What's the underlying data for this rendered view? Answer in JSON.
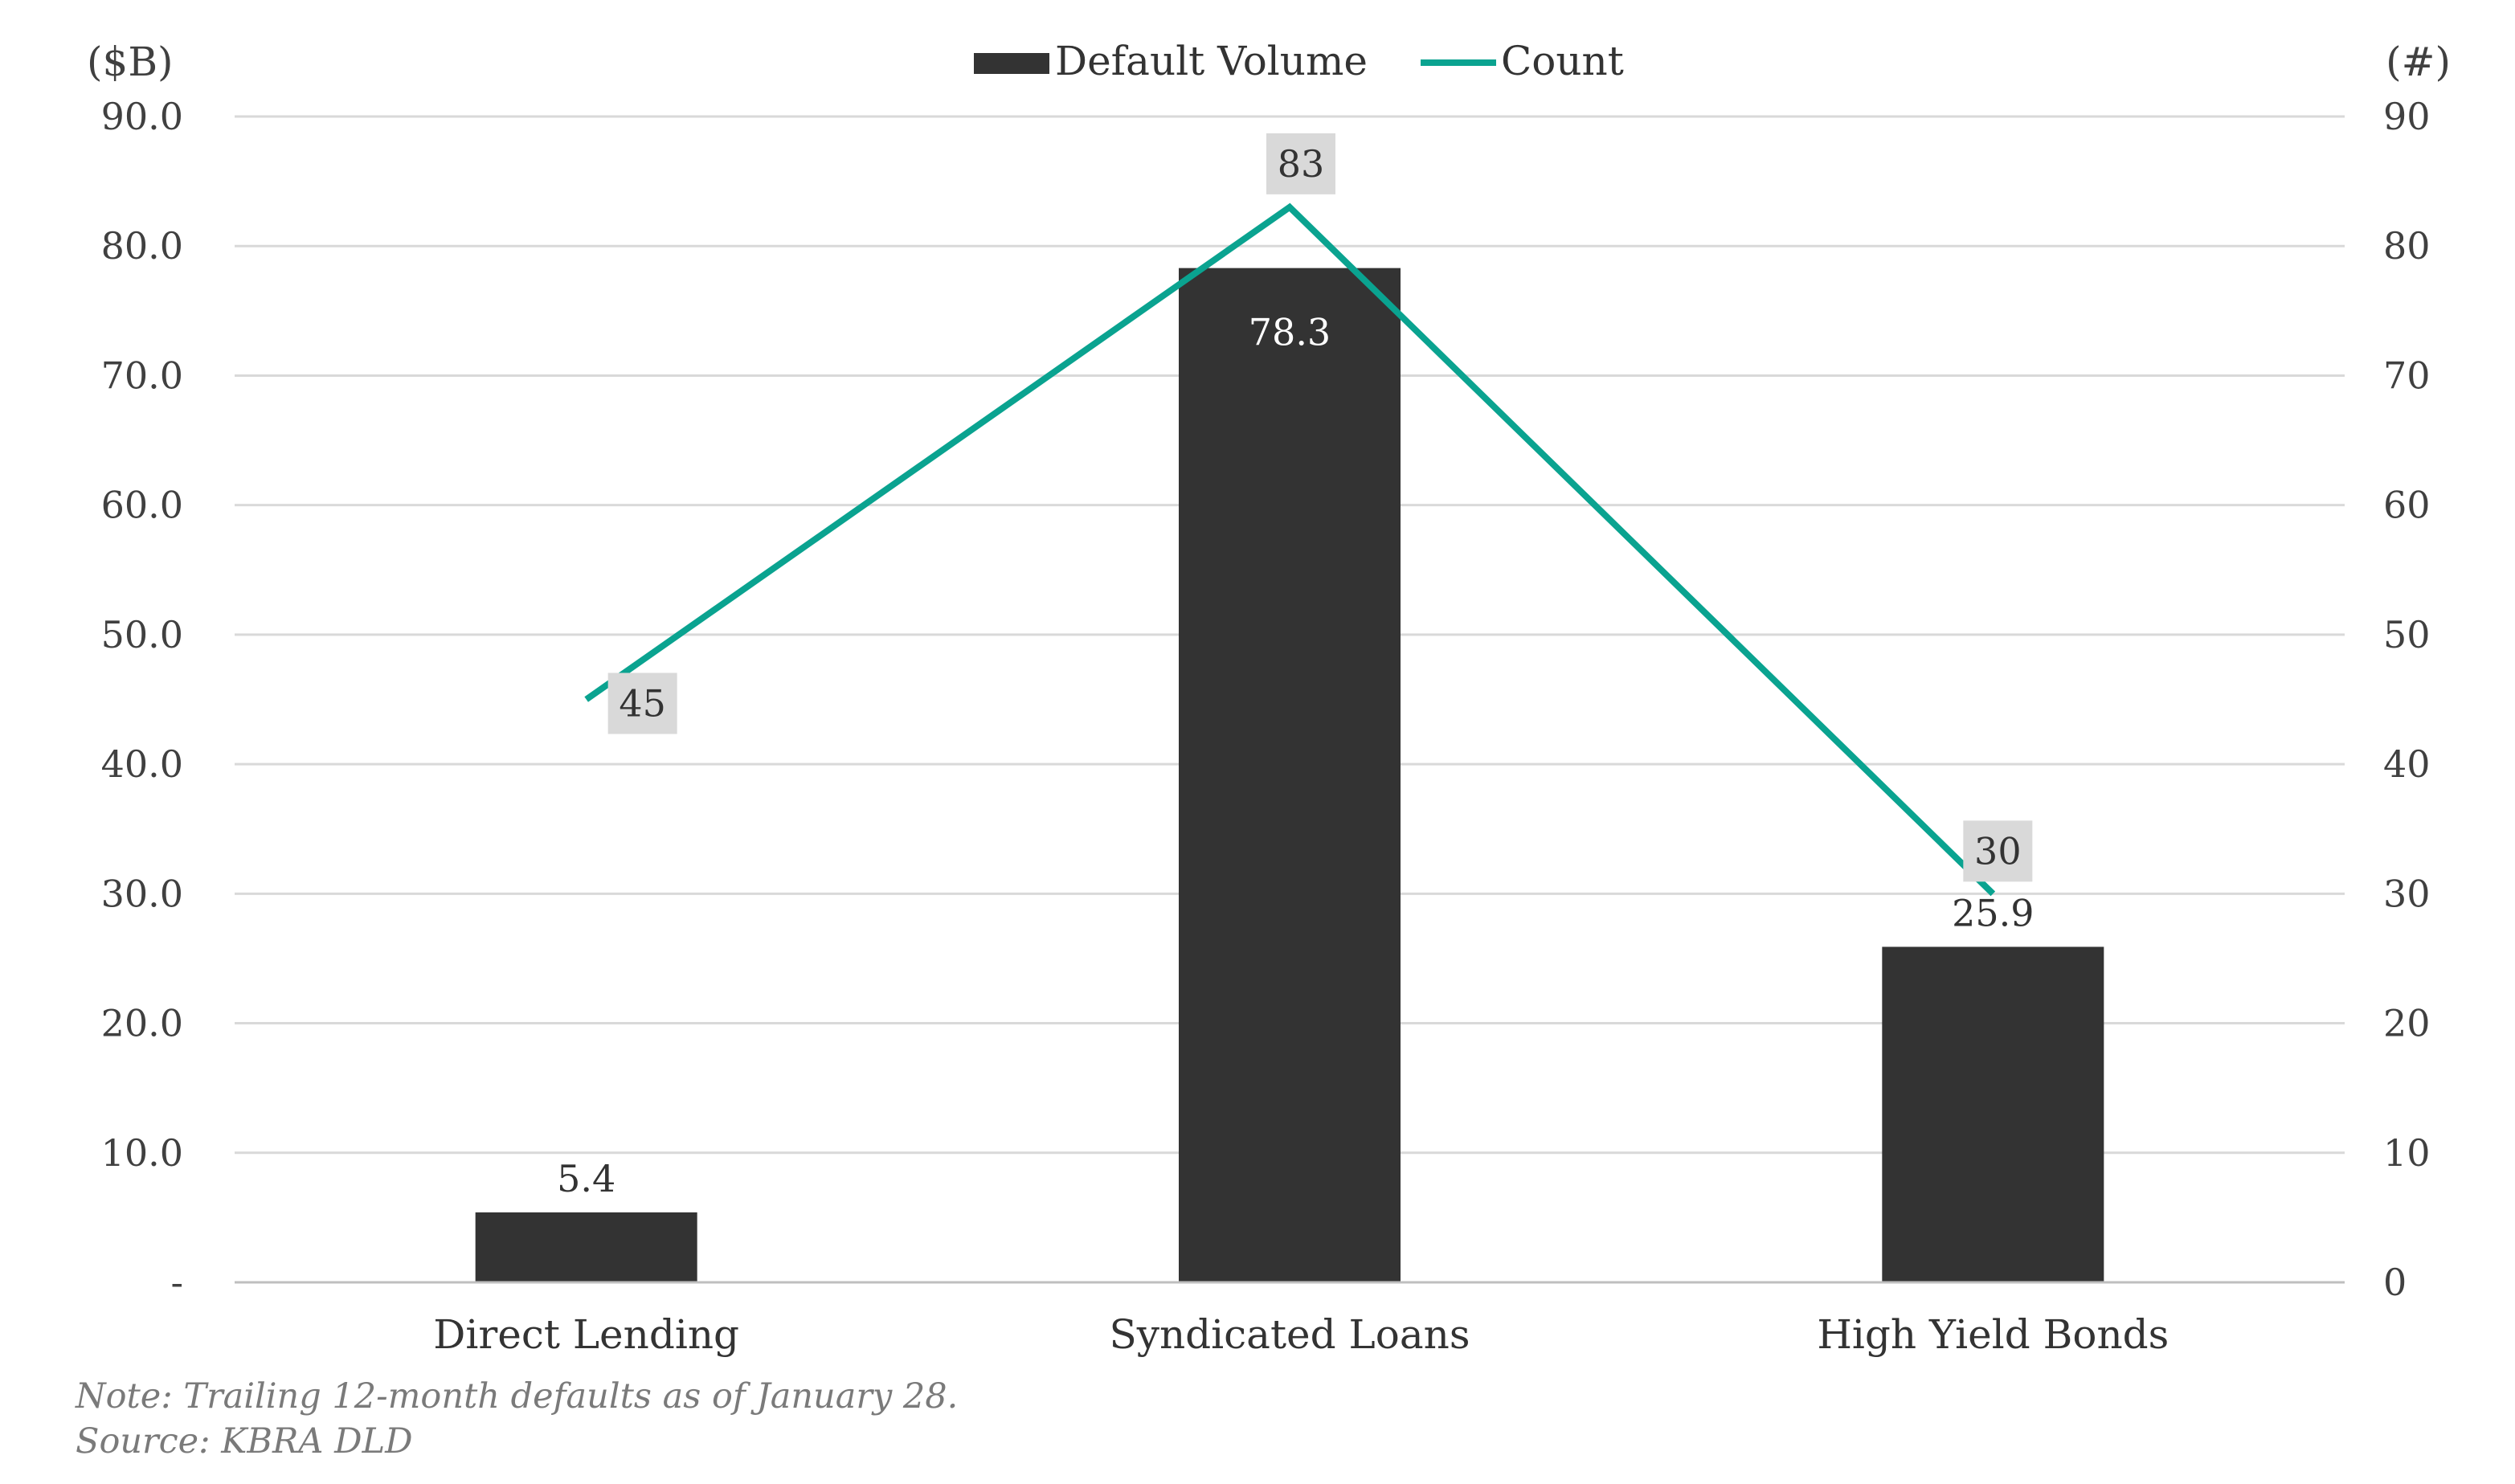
{
  "chart_data": {
    "type": "bar",
    "categories": [
      "Direct Lending",
      "Syndicated Loans",
      "High Yield Bonds"
    ],
    "series": [
      {
        "name": "Default Volume",
        "type": "bar",
        "axis": "left",
        "values": [
          5.4,
          78.3,
          25.9
        ],
        "labels": [
          "5.4",
          "78.3",
          "25.9"
        ],
        "color": "#333333"
      },
      {
        "name": "Count",
        "type": "line",
        "axis": "right",
        "values": [
          45,
          83,
          30
        ],
        "labels": [
          "45",
          "83",
          "30"
        ],
        "color": "#0aa390"
      }
    ],
    "y_left": {
      "unit": "($B)",
      "range": [
        0,
        90
      ],
      "ticks": [
        0,
        10,
        20,
        30,
        40,
        50,
        60,
        70,
        80,
        90
      ],
      "tick_labels": [
        "-",
        "10.0",
        "20.0",
        "30.0",
        "40.0",
        "50.0",
        "60.0",
        "70.0",
        "80.0",
        "90.0"
      ]
    },
    "y_right": {
      "unit": "(#)",
      "range": [
        0,
        90
      ],
      "ticks": [
        0,
        10,
        20,
        30,
        40,
        50,
        60,
        70,
        80,
        90
      ],
      "tick_labels": [
        "0",
        "10",
        "20",
        "30",
        "40",
        "50",
        "60",
        "70",
        "80",
        "90"
      ]
    },
    "grid": true,
    "legend": "top-center",
    "note": "Note: Trailing 12-month defaults as of January 28.",
    "source": "Source: KBRA DLD",
    "colors": {
      "bar": "#333333",
      "line": "#0aa390",
      "label_bg": "#d9d9d9",
      "grid": "#d9d9d9"
    }
  }
}
